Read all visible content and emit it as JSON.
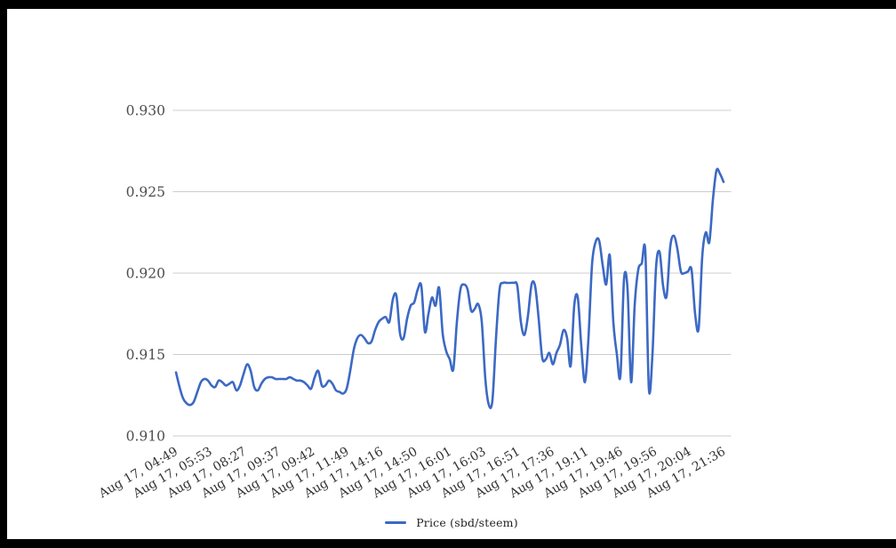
{
  "frame": {
    "border_color": "#000000",
    "chart_background": "#ffffff"
  },
  "colors": {
    "line": "#3c69c4",
    "grid": "#cccccc",
    "y_label": "#4d4d4d",
    "x_label": "#333333",
    "legend_text": "#222222"
  },
  "legend": {
    "label": "Price (sbd/steem)"
  },
  "chart_data": {
    "type": "line",
    "title": "",
    "xlabel": "",
    "ylabel": "",
    "grid": true,
    "legend_position": "bottom",
    "ylim": [
      0.91,
      0.93
    ],
    "y_ticks": [
      0.91,
      0.915,
      0.92,
      0.925,
      0.93
    ],
    "y_tick_labels": [
      "0.910",
      "0.915",
      "0.920",
      "0.925",
      "0.930"
    ],
    "x_tick_labels": [
      "Aug 17, 04:49",
      "Aug 17, 05:53",
      "Aug 17, 08:27",
      "Aug 17, 09:37",
      "Aug 17, 09:42",
      "Aug 17, 11:49",
      "Aug 17, 14:16",
      "Aug 17, 14:50",
      "Aug 17, 16:01",
      "Aug 17, 16:03",
      "Aug 17, 16:51",
      "Aug 17, 17:36",
      "Aug 17, 19:11",
      "Aug 17, 19:46",
      "Aug 17, 19:56",
      "Aug 17, 20:04",
      "Aug 17, 21:36"
    ],
    "series": [
      {
        "name": "Price (sbd/steem)",
        "color": "#3c69c4",
        "values": [
          0.9139,
          0.913,
          0.9123,
          0.912,
          0.9119,
          0.9121,
          0.9127,
          0.9133,
          0.9135,
          0.9134,
          0.9131,
          0.913,
          0.9134,
          0.9133,
          0.9131,
          0.9132,
          0.9133,
          0.9128,
          0.9131,
          0.9138,
          0.9144,
          0.914,
          0.913,
          0.9128,
          0.9132,
          0.9135,
          0.9136,
          0.9136,
          0.9135,
          0.9135,
          0.9135,
          0.9135,
          0.9136,
          0.9135,
          0.9134,
          0.9134,
          0.9133,
          0.9131,
          0.9129,
          0.9136,
          0.914,
          0.9131,
          0.9131,
          0.9134,
          0.9132,
          0.9128,
          0.9127,
          0.9126,
          0.9129,
          0.914,
          0.9153,
          0.916,
          0.9162,
          0.916,
          0.9157,
          0.9158,
          0.9165,
          0.917,
          0.9172,
          0.9173,
          0.917,
          0.9184,
          0.9186,
          0.9163,
          0.916,
          0.9172,
          0.918,
          0.9182,
          0.919,
          0.9192,
          0.9164,
          0.9175,
          0.9185,
          0.918,
          0.9191,
          0.9163,
          0.9152,
          0.9147,
          0.9141,
          0.917,
          0.919,
          0.9193,
          0.919,
          0.9177,
          0.9178,
          0.9181,
          0.917,
          0.9135,
          0.9119,
          0.9122,
          0.916,
          0.919,
          0.9194,
          0.9194,
          0.9194,
          0.9194,
          0.9192,
          0.917,
          0.9162,
          0.9174,
          0.9193,
          0.9192,
          0.9172,
          0.9148,
          0.9147,
          0.9151,
          0.9144,
          0.9151,
          0.9156,
          0.9165,
          0.916,
          0.9143,
          0.918,
          0.9185,
          0.9155,
          0.9133,
          0.916,
          0.9205,
          0.9219,
          0.922,
          0.9205,
          0.9193,
          0.9211,
          0.917,
          0.915,
          0.9137,
          0.9196,
          0.919,
          0.9133,
          0.918,
          0.9202,
          0.9206,
          0.9213,
          0.9129,
          0.915,
          0.9203,
          0.9213,
          0.9192,
          0.9186,
          0.9216,
          0.9223,
          0.9215,
          0.9201,
          0.92,
          0.9201,
          0.9202,
          0.9175,
          0.9166,
          0.921,
          0.9225,
          0.9219,
          0.9245,
          0.9263,
          0.9261,
          0.9256
        ]
      }
    ]
  }
}
